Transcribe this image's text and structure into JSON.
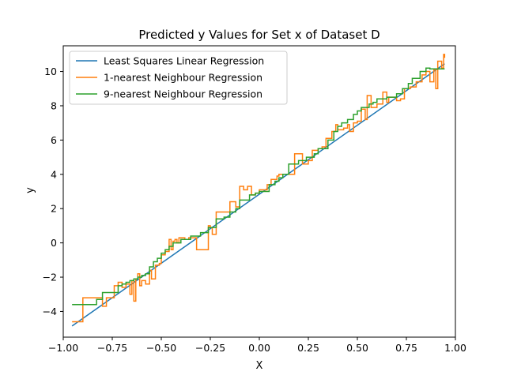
{
  "chart_data": {
    "type": "line",
    "title": "Predicted y Values for Set x of Dataset D",
    "xlabel": "X",
    "ylabel": "y",
    "xlim": [
      -1.0,
      1.0
    ],
    "ylim": [
      -5.5,
      11.5
    ],
    "xticks": [
      -1.0,
      -0.75,
      -0.5,
      -0.25,
      0.0,
      0.25,
      0.5,
      0.75,
      1.0
    ],
    "xtick_labels": [
      "−1.00",
      "−0.75",
      "−0.50",
      "−0.25",
      "0.00",
      "0.25",
      "0.50",
      "0.75",
      "1.00"
    ],
    "yticks": [
      -4,
      -2,
      0,
      2,
      4,
      6,
      8,
      10
    ],
    "ytick_labels": [
      "−4",
      "−2",
      "0",
      "2",
      "4",
      "6",
      "8",
      "10"
    ],
    "grid": false,
    "legend_position": "top-left",
    "series": [
      {
        "name": "Least Squares Linear Regression",
        "color": "#1f77b4",
        "step": false,
        "x": [
          -0.955,
          0.945
        ],
        "y": [
          -4.85,
          10.45
        ]
      },
      {
        "name": "1-nearest Neighbour Regression",
        "color": "#ff7f0e",
        "step": true,
        "x": [
          -0.955,
          -0.9,
          -0.88,
          -0.8,
          -0.78,
          -0.74,
          -0.72,
          -0.7,
          -0.68,
          -0.66,
          -0.65,
          -0.64,
          -0.63,
          -0.62,
          -0.61,
          -0.6,
          -0.58,
          -0.56,
          -0.55,
          -0.53,
          -0.51,
          -0.5,
          -0.48,
          -0.46,
          -0.45,
          -0.44,
          -0.43,
          -0.42,
          -0.41,
          -0.38,
          -0.36,
          -0.32,
          -0.3,
          -0.26,
          -0.25,
          -0.24,
          -0.22,
          -0.2,
          -0.15,
          -0.12,
          -0.1,
          -0.08,
          -0.06,
          -0.04,
          -0.02,
          0.0,
          0.04,
          0.06,
          0.09,
          0.1,
          0.12,
          0.15,
          0.18,
          0.22,
          0.25,
          0.27,
          0.3,
          0.32,
          0.34,
          0.37,
          0.39,
          0.4,
          0.43,
          0.45,
          0.46,
          0.48,
          0.5,
          0.52,
          0.54,
          0.55,
          0.57,
          0.6,
          0.63,
          0.65,
          0.66,
          0.68,
          0.7,
          0.72,
          0.74,
          0.77,
          0.8,
          0.83,
          0.85,
          0.87,
          0.89,
          0.9,
          0.91,
          0.92,
          0.93,
          0.94,
          0.945
        ],
        "y": [
          -4.6,
          -3.2,
          -3.2,
          -3.7,
          -3.2,
          -2.5,
          -2.3,
          -2.6,
          -2.4,
          -3.0,
          -2.2,
          -3.4,
          -2.1,
          -1.8,
          -2.5,
          -2.2,
          -2.4,
          -1.6,
          -2.1,
          -1.3,
          -1.2,
          -0.7,
          -0.5,
          0.2,
          -0.4,
          0.1,
          0.2,
          0.0,
          0.3,
          0.2,
          0.3,
          -0.4,
          -0.4,
          1.0,
          0.9,
          0.5,
          1.8,
          1.8,
          2.4,
          2.1,
          3.3,
          3.1,
          3.3,
          2.8,
          2.9,
          3.1,
          3.4,
          3.7,
          3.9,
          4.0,
          4.0,
          4.0,
          5.2,
          4.6,
          4.8,
          5.4,
          5.5,
          5.6,
          6.1,
          6.5,
          6.9,
          6.6,
          6.7,
          6.9,
          6.5,
          7.0,
          7.1,
          7.8,
          7.2,
          8.6,
          7.9,
          8.1,
          8.8,
          8.2,
          8.5,
          8.5,
          8.3,
          8.4,
          9.0,
          9.1,
          9.4,
          9.8,
          10.0,
          9.4,
          10.1,
          9.0,
          10.6,
          10.6,
          10.2,
          11.0,
          10.8
        ]
      },
      {
        "name": "9-nearest Neighbour Regression",
        "color": "#2ca02c",
        "step": true,
        "x": [
          -0.955,
          -0.83,
          -0.8,
          -0.72,
          -0.7,
          -0.68,
          -0.66,
          -0.64,
          -0.62,
          -0.6,
          -0.58,
          -0.56,
          -0.54,
          -0.52,
          -0.5,
          -0.48,
          -0.46,
          -0.44,
          -0.42,
          -0.4,
          -0.35,
          -0.3,
          -0.26,
          -0.22,
          -0.18,
          -0.15,
          -0.12,
          -0.1,
          -0.05,
          -0.02,
          0.0,
          0.05,
          0.08,
          0.1,
          0.12,
          0.15,
          0.2,
          0.24,
          0.28,
          0.3,
          0.35,
          0.38,
          0.4,
          0.42,
          0.45,
          0.48,
          0.5,
          0.52,
          0.56,
          0.58,
          0.6,
          0.62,
          0.65,
          0.7,
          0.73,
          0.76,
          0.78,
          0.82,
          0.85,
          0.87,
          0.945
        ],
        "y": [
          -3.6,
          -3.3,
          -2.9,
          -2.5,
          -2.4,
          -2.3,
          -2.2,
          -2.1,
          -2.0,
          -1.9,
          -1.8,
          -1.4,
          -1.1,
          -0.9,
          -0.6,
          -0.4,
          -0.2,
          0.0,
          0.0,
          0.2,
          0.4,
          0.6,
          0.9,
          1.4,
          1.5,
          1.8,
          2.0,
          2.5,
          2.8,
          2.9,
          3.0,
          3.4,
          3.6,
          3.8,
          4.0,
          4.6,
          4.8,
          5.0,
          5.2,
          5.5,
          6.0,
          6.5,
          6.8,
          7.0,
          7.2,
          7.5,
          7.7,
          7.9,
          8.1,
          8.2,
          8.4,
          8.4,
          8.5,
          8.7,
          9.0,
          9.3,
          9.6,
          10.0,
          10.2,
          10.15,
          10.15
        ]
      }
    ]
  }
}
